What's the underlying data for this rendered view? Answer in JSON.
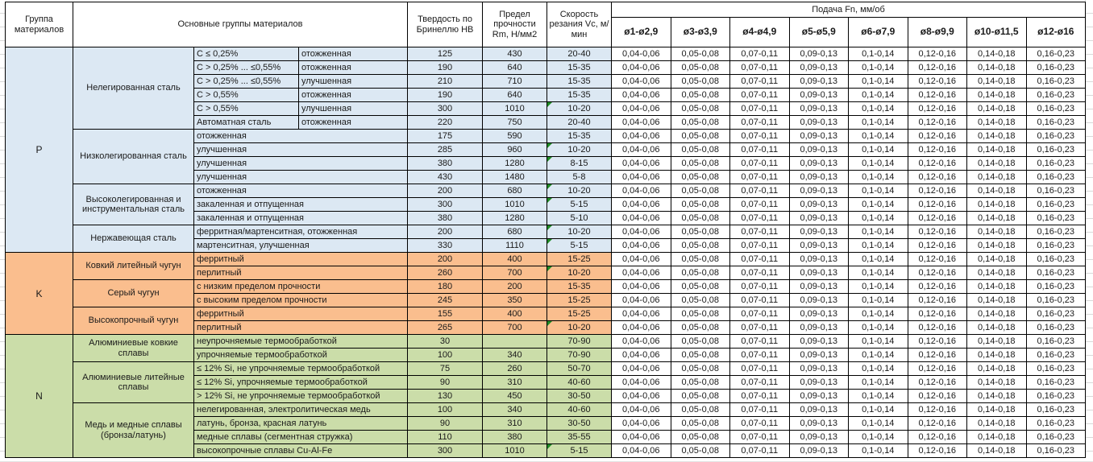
{
  "header": {
    "col_group": "Группа материалов",
    "col_material": "Основные группы материалов",
    "col_hb": "Твердость по Бринеллю HB",
    "col_rm": "Предел прочности Rm, Н/мм2",
    "col_vc": "Скорость резания Vc, м/мин",
    "col_feed": "Подача Fn, мм/об",
    "feed_cols": [
      "ø1-ø2,9",
      "ø3-ø3,9",
      "ø4-ø4,9",
      "ø5-ø5,9",
      "ø6-ø7,9",
      "ø8-ø9,9",
      "ø10-ø11,5",
      "ø12-ø16"
    ]
  },
  "feeds": [
    "0,04-0,06",
    "0,05-0,08",
    "0,07-0,11",
    "0,09-0,13",
    "0,1-0,14",
    "0,12-0,16",
    "0,14-0,18",
    "0,16-0,23"
  ],
  "groups": [
    {
      "code": "P",
      "color": "#DCE8F3",
      "families": [
        {
          "name": "Нелегированная сталь",
          "rows": [
            {
              "desc": [
                "C ≤ 0,25%",
                "отожженная"
              ],
              "hb": "125",
              "rm": "430",
              "vc": "20-40",
              "flag": false
            },
            {
              "desc": [
                "C > 0,25% ... ≤0,55%",
                "отожженная"
              ],
              "hb": "190",
              "rm": "640",
              "vc": "15-35",
              "flag": false
            },
            {
              "desc": [
                "C > 0,25% ... ≤0,55%",
                "улучшенная"
              ],
              "hb": "210",
              "rm": "710",
              "vc": "15-35",
              "flag": false
            },
            {
              "desc": [
                "C > 0,55%",
                "отожженная"
              ],
              "hb": "190",
              "rm": "640",
              "vc": "15-35",
              "flag": false
            },
            {
              "desc": [
                "C > 0,55%",
                "улучшенная"
              ],
              "hb": "300",
              "rm": "1010",
              "vc": "10-20",
              "flag": true
            },
            {
              "desc": [
                "Автоматная сталь",
                "отожженная"
              ],
              "hb": "220",
              "rm": "750",
              "vc": "20-40",
              "flag": false
            }
          ]
        },
        {
          "name": "Низколегированная сталь",
          "rows": [
            {
              "desc": [
                "отожженная"
              ],
              "hb": "175",
              "rm": "590",
              "vc": "15-35",
              "flag": false
            },
            {
              "desc": [
                "улучшенная"
              ],
              "hb": "285",
              "rm": "960",
              "vc": "10-20",
              "flag": true
            },
            {
              "desc": [
                "улучшенная"
              ],
              "hb": "380",
              "rm": "1280",
              "vc": "8-15",
              "flag": true
            },
            {
              "desc": [
                "улучшенная"
              ],
              "hb": "430",
              "rm": "1480",
              "vc": "5-8",
              "flag": false
            }
          ]
        },
        {
          "name": "Высоколегированная и инструментальная сталь",
          "rows": [
            {
              "desc": [
                "отожженная"
              ],
              "hb": "200",
              "rm": "680",
              "vc": "10-20",
              "flag": true
            },
            {
              "desc": [
                "закаленная и отпущенная"
              ],
              "hb": "300",
              "rm": "1010",
              "vc": "5-15",
              "flag": true
            },
            {
              "desc": [
                "закаленная и отпущенная"
              ],
              "hb": "380",
              "rm": "1280",
              "vc": "5-10",
              "flag": false
            }
          ]
        },
        {
          "name": "Нержавеющая сталь",
          "rows": [
            {
              "desc": [
                "ферритная/мартенситная, отожженная"
              ],
              "hb": "200",
              "rm": "680",
              "vc": "10-20",
              "flag": true
            },
            {
              "desc": [
                "мартенситная, улучшенная"
              ],
              "hb": "330",
              "rm": "1110",
              "vc": "5-15",
              "flag": true
            }
          ]
        }
      ]
    },
    {
      "code": "K",
      "color": "#FABE8E",
      "families": [
        {
          "name": "Ковкий литейный чугун",
          "rows": [
            {
              "desc": [
                "ферритный"
              ],
              "hb": "200",
              "rm": "400",
              "vc": "15-25",
              "flag": false
            },
            {
              "desc": [
                "перлитный"
              ],
              "hb": "260",
              "rm": "700",
              "vc": "10-20",
              "flag": true
            }
          ]
        },
        {
          "name": "Серый чугун",
          "rows": [
            {
              "desc": [
                "с низким пределом прочности"
              ],
              "hb": "180",
              "rm": "200",
              "vc": "15-35",
              "flag": false
            },
            {
              "desc": [
                "с высоким пределом прочности"
              ],
              "hb": "245",
              "rm": "350",
              "vc": "15-25",
              "flag": false
            }
          ]
        },
        {
          "name": "Высокопрочный чугун",
          "rows": [
            {
              "desc": [
                "ферритный"
              ],
              "hb": "155",
              "rm": "400",
              "vc": "15-25",
              "flag": false
            },
            {
              "desc": [
                "перлитный"
              ],
              "hb": "265",
              "rm": "700",
              "vc": "10-20",
              "flag": true
            }
          ]
        }
      ]
    },
    {
      "code": "N",
      "color": "#CBDDA9",
      "families": [
        {
          "name": "Алюминиевые ковкие сплавы",
          "rows": [
            {
              "desc": [
                "неупрочняемые термообработкой"
              ],
              "hb": "30",
              "rm": "",
              "vc": "70-90",
              "flag": false
            },
            {
              "desc": [
                "упрочняемые термообработкой"
              ],
              "hb": "100",
              "rm": "340",
              "vc": "70-90",
              "flag": false
            }
          ]
        },
        {
          "name": "Алюминиевые литейные сплавы",
          "rows": [
            {
              "desc": [
                "≤ 12% Si, не упрочняемые термообработкой"
              ],
              "hb": "75",
              "rm": "260",
              "vc": "50-70",
              "flag": false
            },
            {
              "desc": [
                "≤ 12% Si, упрочняемые термообработкой"
              ],
              "hb": "90",
              "rm": "310",
              "vc": "40-60",
              "flag": false
            },
            {
              "desc": [
                "> 12% Si, не упрочняемые термообработкой"
              ],
              "hb": "130",
              "rm": "450",
              "vc": "30-50",
              "flag": false
            }
          ]
        },
        {
          "name": "Медь и медные сплавы (бронза/латунь)",
          "rows": [
            {
              "desc": [
                "нелегированная, электролитическая медь"
              ],
              "hb": "100",
              "rm": "340",
              "vc": "40-60",
              "flag": false
            },
            {
              "desc": [
                "латунь, бронза, красная латунь"
              ],
              "hb": "90",
              "rm": "310",
              "vc": "30-50",
              "flag": false
            },
            {
              "desc": [
                "медные сплавы (сегментная стружка)"
              ],
              "hb": "110",
              "rm": "380",
              "vc": "35-55",
              "flag": false
            },
            {
              "desc": [
                "высокопрочные сплавы Cu-Al-Fe"
              ],
              "hb": "300",
              "rm": "1010",
              "vc": "5-15",
              "flag": true
            }
          ]
        }
      ]
    }
  ]
}
